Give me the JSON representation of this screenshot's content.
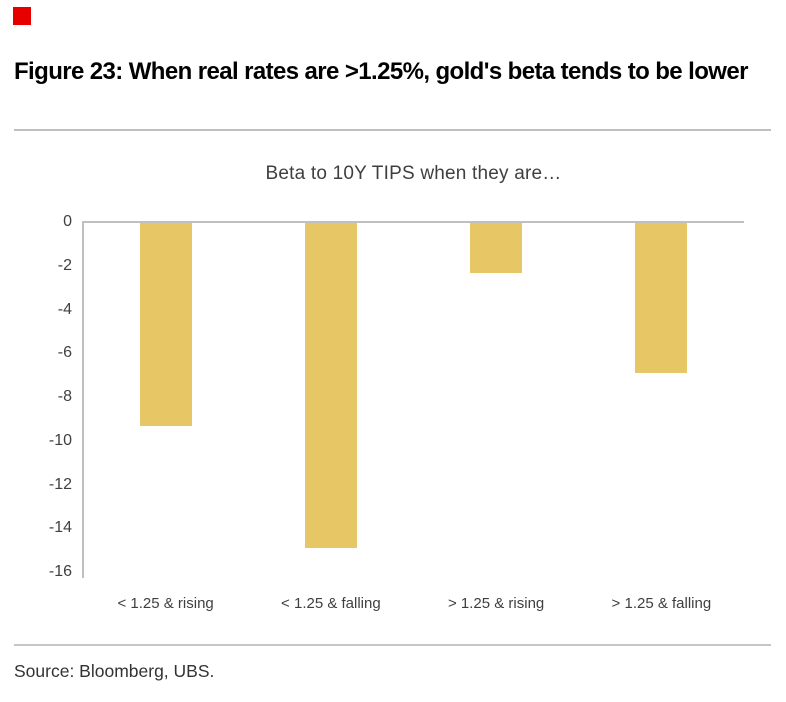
{
  "figure": {
    "title": "Figure 23: When real rates are >1.25%, gold's beta tends to be lower",
    "source": "Source: Bloomberg, UBS.",
    "brand_color": "#e60000"
  },
  "chart_data": {
    "type": "bar",
    "title": "Beta to 10Y TIPS when they are…",
    "categories": [
      "< 1.25 & rising",
      "< 1.25 & falling",
      "> 1.25 & rising",
      "> 1.25 & falling"
    ],
    "values": [
      -9.3,
      -14.9,
      -2.3,
      -6.9
    ],
    "bar_color": "#e7c765",
    "axis_color": "#bfbfbf",
    "ylim": [
      -16,
      0
    ],
    "yticks": [
      0,
      -2,
      -4,
      -6,
      -8,
      -10,
      -12,
      -14,
      -16
    ],
    "xlabel": "",
    "ylabel": "",
    "grid": false,
    "legend": false
  }
}
